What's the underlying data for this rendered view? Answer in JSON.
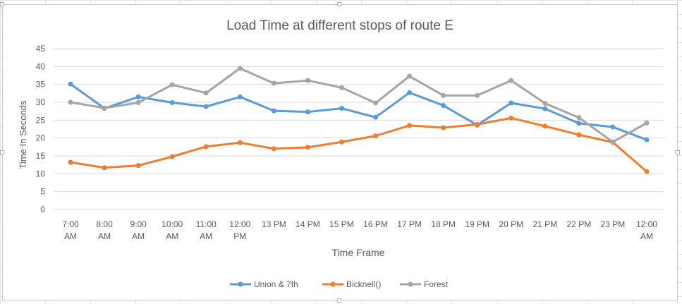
{
  "chart_data": {
    "type": "line",
    "title": "Load Time at different stops of route E",
    "xlabel": "Time Frame",
    "ylabel": "Time In Seconds",
    "ylim": [
      0,
      45
    ],
    "yticks": [
      0,
      5,
      10,
      15,
      20,
      25,
      30,
      35,
      40,
      45
    ],
    "grid": true,
    "legend_position": "bottom",
    "categories": [
      [
        "7:00",
        "AM"
      ],
      [
        "8:00",
        "AM"
      ],
      [
        "9:00",
        "AM"
      ],
      [
        "10:00",
        "AM"
      ],
      [
        "11:00",
        "AM"
      ],
      [
        "12:00",
        "PM"
      ],
      [
        "13 PM"
      ],
      [
        "14 PM"
      ],
      [
        "15 PM"
      ],
      [
        "16 PM"
      ],
      [
        "17 PM"
      ],
      [
        "18 PM"
      ],
      [
        "19 PM"
      ],
      [
        "20 PM"
      ],
      [
        "21 PM"
      ],
      [
        "22 PM"
      ],
      [
        "23 PM"
      ],
      [
        "12:00",
        "AM"
      ]
    ],
    "series": [
      {
        "name": "Union & 7th",
        "color": "#5b9bd5",
        "values": [
          35.1,
          28.3,
          31.5,
          29.9,
          28.8,
          31.5,
          27.6,
          27.3,
          28.3,
          25.8,
          32.7,
          29.1,
          23.6,
          29.8,
          28.2,
          24.1,
          23.1,
          19.5
        ]
      },
      {
        "name": "Bicknell()",
        "color": "#ed7d31",
        "values": [
          13.2,
          11.7,
          12.3,
          14.8,
          17.6,
          18.7,
          17.0,
          17.4,
          18.9,
          20.6,
          23.5,
          22.9,
          23.8,
          25.6,
          23.3,
          20.9,
          18.8,
          10.6
        ]
      },
      {
        "name": "Forest",
        "color": "#a5a5a5",
        "values": [
          30.0,
          28.4,
          29.9,
          34.9,
          32.6,
          39.5,
          35.3,
          36.1,
          34.1,
          29.8,
          37.3,
          31.9,
          31.9,
          36.1,
          29.7,
          25.7,
          18.9,
          24.2
        ]
      }
    ]
  }
}
